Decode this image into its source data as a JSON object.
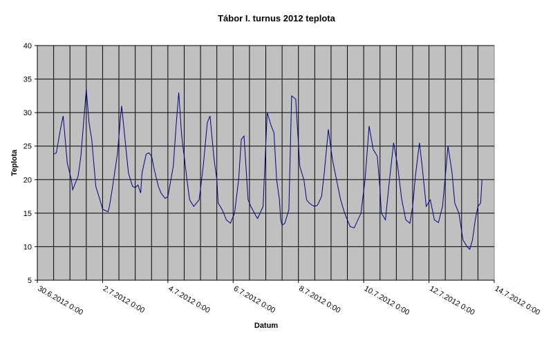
{
  "chart_data": {
    "type": "line",
    "title": "Tábor I. turnus 2012 teplota",
    "xlabel": "Datum",
    "ylabel": "Teplota",
    "ylim": [
      5,
      40
    ],
    "yticks": [
      5,
      10,
      15,
      20,
      25,
      30,
      35,
      40
    ],
    "xlim_days": [
      0,
      14
    ],
    "xtick_days": [
      0,
      2,
      4,
      6,
      8,
      10,
      12,
      14
    ],
    "xtick_labels": [
      "30.6.2012 0:00",
      "2.7.2012 0:00",
      "4.7.2012 0:00",
      "6.7.2012 0:00",
      "8.7.2012 0:00",
      "10.7.2012 0:00",
      "12.7.2012 0:00",
      "14.7.2012 0:00"
    ],
    "grid": true,
    "plot_background": "#c0c0c0",
    "line_color": "#000080",
    "series": [
      {
        "x": [
          "30.6.2012 12:00",
          "30.6.2012 14:00",
          "30.6.2012 17:00",
          "30.6.2012 19:00",
          "30.6.2012 22:00",
          "1.7.2012 1:00",
          "1.7.2012 2:00",
          "1.7.2012 6:00",
          "1.7.2012 8:00",
          "1.7.2012 11:00",
          "1.7.2012 12:00",
          "1.7.2012 14:00",
          "1.7.2012 16:00",
          "1.7.2012 19:00",
          "1.7.2012 22:00",
          "2.7.2012 0:00",
          "2.7.2012 2:00",
          "2.7.2012 4:00",
          "2.7.2012 5:00",
          "2.7.2012 7:00",
          "2.7.2012 11:00",
          "2.7.2012 13:00",
          "2.7.2012 14:00",
          "2.7.2012 16:00",
          "2.7.2012 19:00",
          "2.7.2012 22:00",
          "3.7.2012 0:00",
          "3.7.2012 2:00",
          "3.7.2012 4:00",
          "3.7.2012 5:00",
          "3.7.2012 8:00",
          "3.7.2012 10:00",
          "3.7.2012 12:00",
          "3.7.2012 14:00",
          "3.7.2012 17:00",
          "3.7.2012 19:00",
          "3.7.2012 22:00",
          "4.7.2012 0:00",
          "4.7.2012 4:00",
          "4.7.2012 6:00",
          "4.7.2012 8:00",
          "4.7.2012 10:00",
          "4.7.2012 11:00",
          "4.7.2012 12:00",
          "4.7.2012 14:00",
          "4.7.2012 16:00",
          "4.7.2012 19:00",
          "4.7.2012 23:00",
          "5.7.2012 2:00",
          "5.7.2012 5:00",
          "5.7.2012 7:00",
          "5.7.2012 10:00",
          "5.7.2012 12:00",
          "5.7.2012 13:00",
          "5.7.2012 16:00",
          "5.7.2012 19:00",
          "5.7.2012 22:00",
          "6.7.2012 1:00",
          "6.7.2012 4:00",
          "6.7.2012 6:00",
          "6.7.2012 8:00",
          "6.7.2012 11:00",
          "6.7.2012 12:00",
          "6.7.2012 13:00",
          "6.7.2012 17:00",
          "6.7.2012 18:00",
          "6.7.2012 22:00",
          "7.7.2012 1:00",
          "7.7.2012 4:00",
          "7.7.2012 6:00",
          "7.7.2012 8:00",
          "7.7.2012 10:00",
          "7.7.2012 11:00",
          "7.7.2012 12:00",
          "7.7.2012 14:00",
          "7.7.2012 17:00",
          "7.7.2012 19:00",
          "7.7.2012 22:00",
          "8.7.2012 1:00",
          "8.7.2012 4:00",
          "8.7.2012 6:00",
          "8.7.2012 8:00",
          "8.7.2012 10:00",
          "8.7.2012 12:00",
          "8.7.2012 14:00",
          "8.7.2012 17:00",
          "8.7.2012 19:00",
          "8.7.2012 22:00",
          "9.7.2012 1:00",
          "9.7.2012 4:00",
          "9.7.2012 7:00",
          "9.7.2012 10:00",
          "9.7.2012 12:00",
          "9.7.2012 14:00",
          "9.7.2012 17:00",
          "9.7.2012 22:00",
          "10.7.2012 1:00",
          "10.7.2012 4:00",
          "10.7.2012 7:00",
          "10.7.2012 10:00",
          "10.7.2012 12:00",
          "10.7.2012 13:00",
          "10.7.2012 16:00",
          "10.7.2012 19:00",
          "10.7.2012 22:00",
          "11.7.2012 1:00",
          "11.7.2012 4:00",
          "11.7.2012 7:00",
          "11.7.2012 10:00",
          "11.7.2012 12:00",
          "11.7.2012 14:00",
          "11.7.2012 17:00",
          "11.7.2012 19:00",
          "11.7.2012 22:00",
          "12.7.2012 1:00",
          "12.7.2012 4:00",
          "12.7.2012 7:00",
          "12.7.2012 10:00",
          "12.7.2012 12:00",
          "12.7.2012 14:00",
          "12.7.2012 17:00",
          "12.7.2012 19:00",
          "12.7.2012 22:00",
          "13.7.2012 1:00",
          "13.7.2012 4:00",
          "13.7.2012 6:00",
          "13.7.2012 8:00",
          "13.7.2012 10:00",
          "13.7.2012 12:00",
          "13.7.2012 14:00",
          "13.7.2012 15:00"
        ],
        "y": [
          23.8,
          24.0,
          27.5,
          29.5,
          22.5,
          20.0,
          18.5,
          20.5,
          23.5,
          31.0,
          33.5,
          28.5,
          26.0,
          19.0,
          17.0,
          15.6,
          15.4,
          15.2,
          16.0,
          18.5,
          24.0,
          29.0,
          31.0,
          27.0,
          21.0,
          19.0,
          18.8,
          19.2,
          18.0,
          21.0,
          23.8,
          24.0,
          23.5,
          21.5,
          19.0,
          18.0,
          17.2,
          17.5,
          22.0,
          28.0,
          33.0,
          27.0,
          25.0,
          23.5,
          20.0,
          17.0,
          16.0,
          17.0,
          22.0,
          28.5,
          29.5,
          23.0,
          20.0,
          16.5,
          15.5,
          14.0,
          13.5,
          15.0,
          20.0,
          26.0,
          26.5,
          17.0,
          16.5,
          16.0,
          14.5,
          14.2,
          16.0,
          30.0,
          28.0,
          27.0,
          20.0,
          17.0,
          14.0,
          13.2,
          13.5,
          15.5,
          32.5,
          32.0,
          22.0,
          20.0,
          17.0,
          16.5,
          16.2,
          16.0,
          16.2,
          17.5,
          21.0,
          27.5,
          23.0,
          20.0,
          17.0,
          15.0,
          14.0,
          13.0,
          12.8,
          15.0,
          20.0,
          28.0,
          24.5,
          23.5,
          18.5,
          15.0,
          14.0,
          20.0,
          25.5,
          22.0,
          17.0,
          14.0,
          13.5,
          16.0,
          20.5,
          25.5,
          22.0,
          16.0,
          17.0,
          14.0,
          13.6,
          16.0,
          20.5,
          25.0,
          21.0,
          16.5,
          15.0,
          11.0,
          10.0,
          9.6,
          11.0,
          14.0,
          16.0,
          16.5,
          20.0
        ]
      }
    ]
  }
}
